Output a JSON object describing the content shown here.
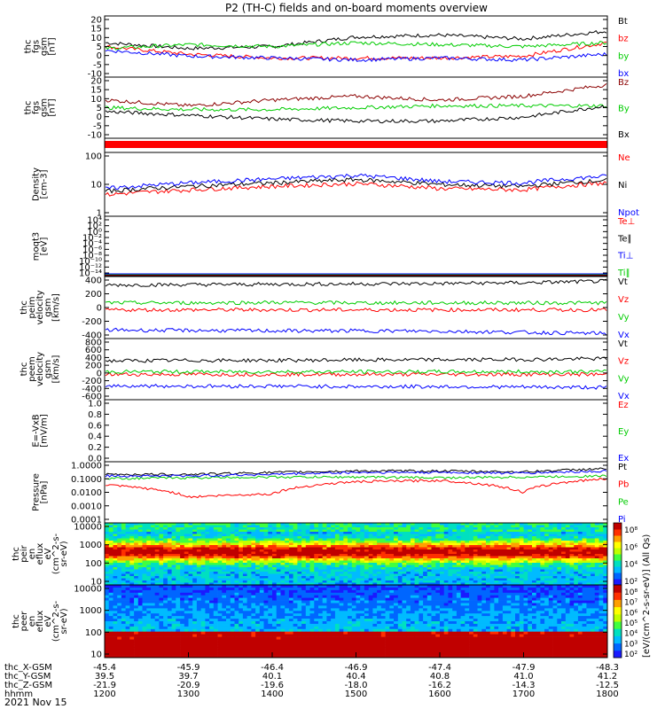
{
  "title": "P2 (TH-C) fields and on-board moments overview",
  "date_label": "2021 Nov 15",
  "colorbar_label": "[eV/(cm^2-s-sr-eV)] (All Qs)",
  "panels": [
    {
      "id": "fgs_gsm",
      "ylabel": [
        "thc",
        "fgs",
        "gsm",
        "[nT]"
      ],
      "ticks": [
        "20",
        "15",
        "10",
        "5",
        "0",
        "-5",
        "-10"
      ],
      "ylim": [
        -12,
        20
      ],
      "legend": [
        {
          "label": "Bt",
          "color": "#000000"
        },
        {
          "label": "bz",
          "color": "#ff0000"
        },
        {
          "label": "by",
          "color": "#00cc00"
        },
        {
          "label": "bx",
          "color": "#0000ff"
        }
      ]
    },
    {
      "id": "fgs_gsm2",
      "ylabel": [
        "thc",
        "fgs",
        "gsm",
        "[nT]"
      ],
      "ticks": [
        "20",
        "15",
        "10",
        "5",
        "0",
        "-5",
        "-10"
      ],
      "ylim": [
        -12,
        20
      ],
      "legend": [
        {
          "label": "Bz",
          "color": "#8b0000"
        },
        {
          "label": "By",
          "color": "#00cc00"
        },
        {
          "label": "Bx",
          "color": "#000000"
        }
      ]
    },
    {
      "id": "density",
      "ylabel": [
        "Density",
        "[cm-3]"
      ],
      "ticks": [
        "100",
        "10",
        "1"
      ],
      "ylim": [
        1,
        200
      ],
      "legend": [
        {
          "label": "Ne",
          "color": "#ff0000"
        },
        {
          "label": "Ni",
          "color": "#000000"
        },
        {
          "label": "Npot",
          "color": "#0000ff"
        }
      ]
    },
    {
      "id": "temps",
      "ylabel": [
        "moqt3",
        "[eV]"
      ],
      "ticks": [
        "10⁴",
        "10²",
        "10⁰",
        "10⁻²",
        "10⁻⁴",
        "10⁻⁶",
        "10⁻⁸",
        "10⁻¹⁰",
        "10⁻¹²",
        "10⁻¹⁴"
      ],
      "legend": [
        {
          "label": "Te⊥",
          "color": "#ff0000"
        },
        {
          "label": "Te∥",
          "color": "#000000"
        },
        {
          "label": "Ti⊥",
          "color": "#0000ff"
        },
        {
          "label": "Ti∥",
          "color": "#00cc00"
        }
      ]
    },
    {
      "id": "peim",
      "ylabel": [
        "thc",
        "peim",
        "velocity",
        "gsm",
        "[km/s]"
      ],
      "ticks": [
        "400",
        "200",
        "0",
        "-200",
        "-400"
      ],
      "ylim": [
        -400,
        400
      ],
      "legend": [
        {
          "label": "Vt",
          "color": "#000000"
        },
        {
          "label": "Vz",
          "color": "#ff0000"
        },
        {
          "label": "Vy",
          "color": "#00cc00"
        },
        {
          "label": "Vx",
          "color": "#0000ff"
        }
      ]
    },
    {
      "id": "peem",
      "ylabel": [
        "thc",
        "peem",
        "velocity",
        "gsm",
        "[km/s]"
      ],
      "ticks": [
        "800",
        "600",
        "400",
        "200",
        "0",
        "-200",
        "-400",
        "-600"
      ],
      "ylim": [
        -600,
        800
      ],
      "legend": [
        {
          "label": "Vt",
          "color": "#000000"
        },
        {
          "label": "Vz",
          "color": "#ff0000"
        },
        {
          "label": "Vy",
          "color": "#00cc00"
        },
        {
          "label": "Vx",
          "color": "#0000ff"
        }
      ]
    },
    {
      "id": "efield",
      "ylabel": [
        "E=-VxB",
        "[mV/m]"
      ],
      "ticks": [
        "1.0",
        "0.8",
        "0.6",
        "0.4",
        "0.2",
        "0.0"
      ],
      "ylim": [
        0,
        1
      ],
      "legend": [
        {
          "label": "Ez",
          "color": "#ff0000"
        },
        {
          "label": "Ey",
          "color": "#00cc00"
        },
        {
          "label": "Ex",
          "color": "#0000ff"
        }
      ]
    },
    {
      "id": "pressure",
      "ylabel": [
        "Pressure",
        "[nPa]"
      ],
      "ticks": [
        "1.0000",
        "0.1000",
        "0.0100",
        "0.0010",
        "0.0001"
      ],
      "ylim": [
        0.0001,
        1
      ],
      "legend": [
        {
          "label": "Pt",
          "color": "#000000"
        },
        {
          "label": "Pb",
          "color": "#ff0000"
        },
        {
          "label": "Pe",
          "color": "#00cc00"
        },
        {
          "label": "Pi",
          "color": "#0000ff"
        }
      ]
    },
    {
      "id": "peir",
      "ylabel": [
        "thc",
        "peir",
        "en",
        "eflux",
        "eV",
        "(cm^2-s-",
        "sr-eV)"
      ],
      "ticks": [
        "10000",
        "1000",
        "100",
        "10"
      ],
      "cbar_ticks": [
        "10⁸",
        "10⁶",
        "10⁴",
        "10²"
      ]
    },
    {
      "id": "peer",
      "ylabel": [
        "thc",
        "peer",
        "en",
        "eflux",
        "eV",
        "(cm^2-s-",
        "sr-eV)"
      ],
      "ticks": [
        "10000",
        "1000",
        "100",
        "10"
      ],
      "cbar_ticks": [
        "10⁸",
        "10⁷",
        "10⁶",
        "10⁵",
        "10⁴",
        "10³",
        "10²"
      ]
    }
  ],
  "x_axis": {
    "row_labels": [
      "thc_X-GSM",
      "thc_Y-GSM",
      "thc_Z-GSM",
      "hhmm"
    ],
    "columns": [
      [
        "-45.4",
        "39.5",
        "-21.9",
        "1200"
      ],
      [
        "-45.9",
        "39.7",
        "-20.9",
        "1300"
      ],
      [
        "-46.4",
        "40.1",
        "-19.6",
        "1400"
      ],
      [
        "-46.9",
        "40.4",
        "-18.0",
        "1500"
      ],
      [
        "-47.4",
        "40.8",
        "-16.2",
        "1600"
      ],
      [
        "-47.9",
        "41.0",
        "-14.3",
        "1700"
      ],
      [
        "-48.3",
        "41.2",
        "-12.5",
        "1800"
      ]
    ]
  },
  "chart_data": [
    {
      "type": "line",
      "title": "P2 (TH-C) fields and on-board moments overview",
      "ylabel": "thc fgs gsm [nT]",
      "ylim": [
        -12,
        20
      ],
      "x": [
        "1200",
        "1300",
        "1400",
        "1500",
        "1600",
        "1700",
        "1800"
      ],
      "series": [
        {
          "name": "Bt",
          "values": [
            6,
            3,
            4,
            9,
            10,
            8,
            12
          ]
        },
        {
          "name": "bz",
          "values": [
            4,
            0,
            -2,
            -2,
            -2,
            -1,
            6
          ]
        },
        {
          "name": "by",
          "values": [
            3,
            5,
            4,
            6,
            5,
            4,
            6
          ]
        },
        {
          "name": "bx",
          "values": [
            2,
            -1,
            -2,
            -3,
            -2,
            -3,
            0
          ]
        }
      ]
    },
    {
      "type": "line",
      "ylabel": "thc fgs gsm [nT]",
      "ylim": [
        -12,
        20
      ],
      "x": [
        "1200",
        "1300",
        "1400",
        "1500",
        "1600",
        "1700",
        "1800"
      ],
      "series": [
        {
          "name": "Bz",
          "values": [
            8,
            5,
            8,
            10,
            8,
            10,
            16
          ]
        },
        {
          "name": "By",
          "values": [
            4,
            3,
            3,
            4,
            5,
            5,
            5
          ]
        },
        {
          "name": "Bx",
          "values": [
            2,
            0,
            -2,
            -3,
            -3,
            -1,
            5
          ]
        }
      ]
    },
    {
      "type": "line",
      "ylabel": "Density [cm-3]",
      "log": true,
      "ylim": [
        1,
        200
      ],
      "x": [
        "1200",
        "1300",
        "1400",
        "1500",
        "1600",
        "1700",
        "1800"
      ],
      "series": [
        {
          "name": "Ne",
          "values": [
            6,
            9,
            12,
            15,
            10,
            9,
            16
          ]
        },
        {
          "name": "Ni",
          "values": [
            8,
            12,
            16,
            21,
            14,
            12,
            20
          ]
        },
        {
          "name": "Npot",
          "values": [
            10,
            16,
            22,
            30,
            18,
            16,
            28
          ]
        }
      ]
    },
    {
      "type": "line",
      "ylabel": "thc peim velocity gsm [km/s]",
      "ylim": [
        -400,
        400
      ],
      "x": [
        "1200",
        "1300",
        "1400",
        "1500",
        "1600",
        "1700",
        "1800"
      ],
      "series": [
        {
          "name": "Vt",
          "values": [
            290,
            295,
            300,
            305,
            310,
            320,
            340
          ]
        },
        {
          "name": "Vz",
          "values": [
            -30,
            -30,
            -30,
            -30,
            -30,
            -30,
            -30
          ]
        },
        {
          "name": "Vy",
          "values": [
            60,
            60,
            65,
            60,
            60,
            60,
            60
          ]
        },
        {
          "name": "Vx",
          "values": [
            -290,
            -295,
            -300,
            -300,
            -305,
            -320,
            -335
          ]
        }
      ]
    },
    {
      "type": "line",
      "ylabel": "thc peem velocity gsm [km/s]",
      "ylim": [
        -600,
        800
      ],
      "x": [
        "1200",
        "1300",
        "1400",
        "1500",
        "1600",
        "1700",
        "1800"
      ],
      "series": [
        {
          "name": "Vt",
          "values": [
            290,
            300,
            300,
            310,
            315,
            320,
            340
          ]
        },
        {
          "name": "Vz",
          "values": [
            -20,
            -20,
            -20,
            -20,
            -20,
            -20,
            -20
          ]
        },
        {
          "name": "Vy",
          "values": [
            40,
            40,
            40,
            40,
            40,
            40,
            40
          ]
        },
        {
          "name": "Vx",
          "values": [
            -280,
            -290,
            -290,
            -300,
            -300,
            -310,
            -320
          ]
        }
      ]
    },
    {
      "type": "line",
      "ylabel": "Pressure [nPa]",
      "log": true,
      "ylim": [
        0.0001,
        1
      ],
      "x": [
        "1200",
        "1300",
        "1400",
        "1500",
        "1600",
        "1700",
        "1800"
      ],
      "series": [
        {
          "name": "Pt",
          "values": [
            0.15,
            0.15,
            0.2,
            0.25,
            0.25,
            0.22,
            0.35
          ]
        },
        {
          "name": "Pb",
          "values": [
            0.03,
            0.005,
            0.008,
            0.05,
            0.06,
            0.01,
            0.08
          ]
        },
        {
          "name": "Pe",
          "values": [
            0.08,
            0.09,
            0.1,
            0.1,
            0.09,
            0.1,
            0.12
          ]
        },
        {
          "name": "Pi",
          "values": [
            0.12,
            0.12,
            0.15,
            0.2,
            0.2,
            0.18,
            0.25
          ]
        }
      ]
    },
    {
      "type": "heatmap",
      "ylabel": "thc peir en eflux eV (cm^2-s-sr-eV)",
      "log": true,
      "ylim": [
        5,
        30000
      ],
      "zlim": [
        100,
        100000000
      ]
    },
    {
      "type": "heatmap",
      "ylabel": "thc peer en eflux eV (cm^2-s-sr-eV)",
      "log": true,
      "ylim": [
        5,
        30000
      ],
      "zlim": [
        100,
        100000000
      ]
    }
  ],
  "colors": {
    "black": "#000000",
    "red": "#ff0000",
    "green": "#00cc00",
    "blue": "#0000ff",
    "darkred": "#8b0000"
  }
}
